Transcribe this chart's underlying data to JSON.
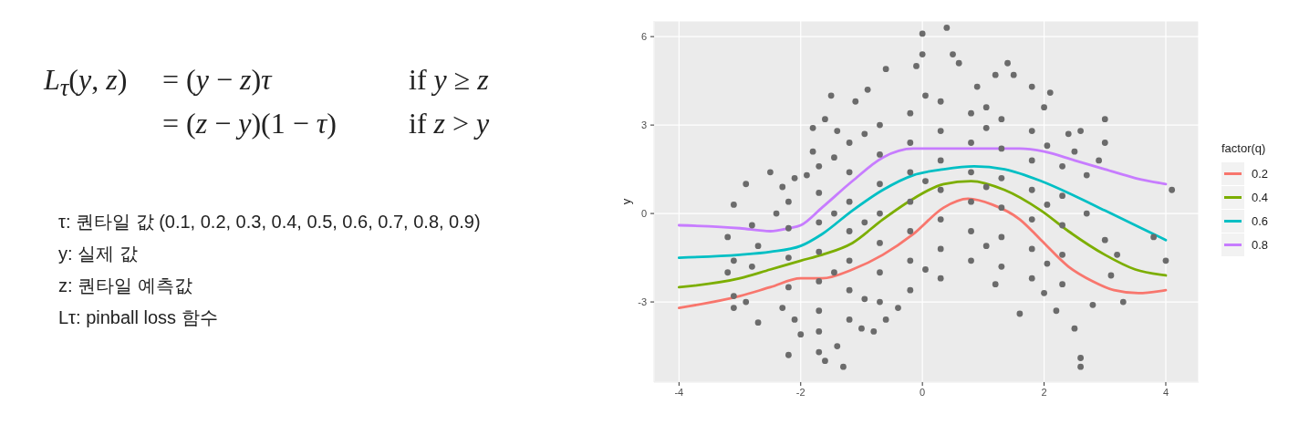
{
  "chart_data": {
    "type": "scatter",
    "annotations": [
      "L$_{τ}$(y, z)",
      "= (y − z)τ",
      "if y ≥ z",
      "= (z − y)(1 − τ)",
      "if z > y",
      "τ: 퀀타일 값 (0.1, 0.2, 0.3, 0.4, 0.5, 0.6, 0.7, 0.8, 0.9)",
      "y: 실제 값",
      "z: 퀀타일 예측값",
      "Lτ: pinball loss 함수"
    ],
    "ylabel": "y",
    "legend_title": "factor(q)",
    "xlim": [
      -4.41,
      4.54
    ],
    "ylim": [
      -5.72,
      6.53
    ],
    "xticks": [
      -4,
      -2,
      0,
      2,
      4
    ],
    "yticks": [
      -3,
      0,
      3,
      6
    ],
    "grid": true,
    "legend": "right",
    "marker": "circle",
    "series": [
      {
        "color": "#6b6b6b",
        "x": [
          -2.2,
          -2.2,
          -2.2,
          -2.2,
          -1.7,
          -1.7,
          -1.7,
          -1.7,
          -1.7,
          -1.7,
          -1.2,
          -1.2,
          -1.2,
          -1.2,
          -1.2,
          -1.2,
          -1.2,
          -0.7,
          -0.7,
          -0.7,
          -0.7,
          -0.7,
          -0.7,
          -0.7,
          -0.2,
          -0.2,
          -0.2,
          -0.2,
          -0.2,
          -0.2,
          -0.2,
          0.3,
          0.3,
          0.3,
          0.3,
          0.3,
          0.3,
          0.3,
          0.8,
          0.8,
          0.8,
          0.8,
          0.8,
          0.8,
          1.3,
          1.3,
          1.3,
          1.3,
          1.3,
          1.3,
          1.8,
          1.8,
          1.8,
          1.8,
          1.8,
          1.8,
          2.3,
          2.3,
          2.3,
          2.3,
          2.3,
          -1.45,
          -1.45,
          -1.45,
          -0.95,
          -0.95,
          -0.95,
          0.05,
          0.05,
          0.05,
          1.05,
          1.05,
          1.05,
          1.05,
          2.05,
          2.05,
          2.05,
          -3.1,
          -2.9,
          -2.5,
          -2.3,
          -2.1,
          -1.9,
          -1.8,
          -1.8,
          -1.6,
          -1.5,
          -1.4,
          -1.1,
          -0.9,
          -0.6,
          -0.1,
          0.0,
          0.0,
          0.4,
          0.5,
          0.6,
          1.4,
          1.5,
          1.2,
          0.9,
          1.8,
          2.1,
          2.0,
          2.4,
          2.6,
          3.0,
          3.0,
          2.9,
          4.1,
          2.5,
          2.7,
          3.8,
          4.0,
          3.0,
          3.2,
          3.1,
          3.3,
          2.8,
          2.5,
          2.6,
          2.6,
          2.2,
          1.6,
          1.2,
          2.0,
          2.7,
          -3.2,
          -3.1,
          -3.2,
          -3.1,
          -3.1,
          -2.9,
          -2.8,
          -2.7,
          -2.7,
          -2.4,
          -2.3,
          -2.2,
          -2.1,
          -2.0,
          -1.7,
          -1.6,
          -1.3,
          -1.4,
          -1.7,
          -1.0,
          -0.8,
          -0.6,
          -0.4,
          -2.8
        ],
        "values": [
          -2.5,
          -1.5,
          -0.5,
          0.4,
          -3.3,
          -2.3,
          -1.3,
          -0.3,
          0.7,
          1.6,
          -3.6,
          -2.6,
          -1.6,
          -0.6,
          0.4,
          1.4,
          2.4,
          -3.0,
          -2.0,
          -1.0,
          0.0,
          1.0,
          2.0,
          3.0,
          -2.6,
          -1.6,
          -0.6,
          0.4,
          1.4,
          2.4,
          3.4,
          -2.2,
          -1.2,
          -0.2,
          0.8,
          1.8,
          2.8,
          3.8,
          -1.6,
          -0.6,
          0.4,
          1.4,
          2.4,
          3.4,
          -1.8,
          -0.8,
          0.2,
          1.2,
          2.2,
          3.2,
          -2.2,
          -1.2,
          -0.2,
          0.8,
          1.8,
          2.8,
          -2.4,
          -1.4,
          -0.4,
          0.6,
          1.6,
          -2.0,
          0.0,
          1.9,
          -2.9,
          -0.3,
          2.7,
          -1.9,
          1.1,
          4.0,
          -1.1,
          0.9,
          2.9,
          3.6,
          -1.7,
          0.3,
          2.3,
          0.3,
          1.0,
          1.4,
          0.9,
          1.2,
          1.3,
          2.1,
          2.9,
          3.2,
          4.0,
          2.8,
          3.8,
          4.2,
          4.9,
          5.0,
          5.4,
          6.1,
          6.3,
          5.4,
          5.1,
          5.1,
          4.7,
          4.7,
          4.3,
          4.3,
          4.1,
          3.6,
          2.7,
          2.8,
          3.2,
          2.4,
          1.8,
          0.8,
          2.1,
          1.3,
          -0.8,
          -1.6,
          -0.9,
          -1.4,
          -2.1,
          -3.0,
          -3.1,
          -3.9,
          -4.9,
          -5.2,
          -3.3,
          -3.4,
          -2.4,
          -2.7,
          0.0,
          -0.8,
          -1.6,
          -2.0,
          -2.8,
          -3.2,
          -3.0,
          -0.4,
          -3.7,
          -1.1,
          0.0,
          -3.2,
          -4.8,
          -3.6,
          -4.1,
          -4.7,
          -5.0,
          -5.2,
          -4.5,
          -4.0,
          -3.9,
          -4.0,
          -3.6,
          -3.2,
          -1.8
        ]
      },
      {
        "type": "line",
        "marker": "none",
        "name": "0.2",
        "color": "#f8766d",
        "x": [
          -4,
          -3,
          -2.5,
          -2,
          -1.65,
          -1.15,
          -0.65,
          -0.15,
          0.35,
          0.75,
          1.15,
          1.6,
          1.95,
          2.4,
          2.8,
          3.15,
          3.55,
          4
        ],
        "values": [
          -3.2,
          -2.8,
          -2.5,
          -2.2,
          -2.2,
          -1.9,
          -1.4,
          -0.7,
          0.2,
          0.5,
          0.3,
          -0.2,
          -0.9,
          -1.8,
          -2.3,
          -2.6,
          -2.7,
          -2.6
        ]
      },
      {
        "type": "line",
        "marker": "none",
        "name": "0.4",
        "color": "#7cae00",
        "x": [
          -4,
          -3,
          -2.5,
          -2,
          -1.65,
          -1.15,
          -0.65,
          -0.15,
          0.35,
          0.8,
          1.35,
          1.95,
          2.4,
          3,
          3.5,
          4
        ],
        "values": [
          -2.5,
          -2.2,
          -1.9,
          -1.6,
          -1.4,
          -1.0,
          -0.2,
          0.5,
          1.0,
          1.1,
          0.8,
          0.1,
          -0.6,
          -1.4,
          -1.9,
          -2.1
        ]
      },
      {
        "type": "line",
        "marker": "none",
        "name": "0.6",
        "color": "#00bfc4",
        "x": [
          -4,
          -3,
          -2.5,
          -2,
          -1.65,
          -1.15,
          -0.65,
          -0.15,
          0.35,
          0.85,
          1.35,
          1.95,
          2.5,
          3,
          3.6,
          4
        ],
        "values": [
          -1.5,
          -1.4,
          -1.3,
          -1.1,
          -0.7,
          0.1,
          0.8,
          1.3,
          1.5,
          1.6,
          1.5,
          1.1,
          0.6,
          0.1,
          -0.5,
          -0.9
        ]
      },
      {
        "type": "line",
        "marker": "none",
        "name": "0.8",
        "color": "#c77cff",
        "x": [
          -4,
          -3,
          -2.5,
          -2.2,
          -2,
          -1.65,
          -1.15,
          -0.65,
          -0.15,
          0.5,
          1,
          1.6,
          2,
          2.5,
          3,
          3.5,
          4
        ],
        "values": [
          -0.4,
          -0.5,
          -0.6,
          -0.5,
          -0.4,
          0.2,
          1.1,
          1.9,
          2.2,
          2.2,
          2.2,
          2.2,
          2.1,
          1.8,
          1.5,
          1.2,
          1.0
        ]
      }
    ]
  }
}
